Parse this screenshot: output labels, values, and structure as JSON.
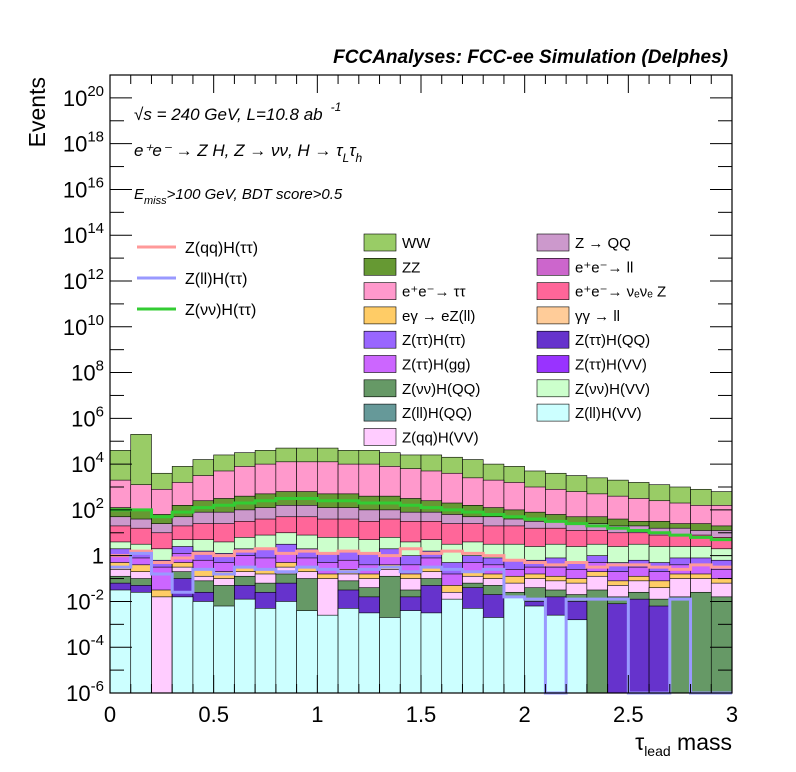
{
  "chart_data": {
    "type": "bar",
    "header": "FCCAnalyses: FCC-ee Simulation (Delphes)",
    "ylabel": "Events",
    "xlabel": "τ",
    "xlabel_sub": "lead",
    "xlabel_suffix": " mass",
    "xlim": [
      0,
      3
    ],
    "ylim_log10": [
      -6,
      21
    ],
    "y_scale": "log",
    "x_ticks": [
      "0",
      "0.5",
      "1",
      "1.5",
      "2",
      "2.5",
      "3"
    ],
    "y_tick_exponents": [
      -6,
      -4,
      -2,
      0,
      2,
      4,
      6,
      8,
      10,
      12,
      14,
      16,
      18,
      20
    ],
    "annotations": {
      "energy_pre": "√",
      "energy_s": "s",
      "energy_text": " = 240 GeV, L=10.8 ab",
      "energy_sup": "-1",
      "process": "e⁺e⁻ → Z H, Z → νν, H → τ",
      "process_sub1": "L",
      "process_tau": "τ",
      "process_sub2": "h",
      "cut_e": "E",
      "cut_sub": "miss",
      "cut_text": ">100 GeV, BDT score>0.5"
    },
    "line_legend": [
      {
        "label": "Z(qq)H(ττ)",
        "color": "#ff9999"
      },
      {
        "label": "Z(ll)H(ττ)",
        "color": "#9999ff"
      },
      {
        "label": "Z(νν)H(ττ)",
        "color": "#33cc33"
      }
    ],
    "fill_legend": [
      {
        "label": "WW",
        "color": "#99cc66"
      },
      {
        "label": "Z → QQ",
        "color": "#cc99cc"
      },
      {
        "label": "ZZ",
        "color": "#669933"
      },
      {
        "label": "e⁺e⁻→ ll",
        "color": "#cc66cc"
      },
      {
        "label": "e⁺e⁻→ ττ",
        "color": "#ff99cc"
      },
      {
        "label": "e⁺e⁻→ νₑνₑ Z",
        "color": "#ff6699"
      },
      {
        "label": "eγ → eZ(ll)",
        "color": "#ffcc66"
      },
      {
        "label": "γγ → ll",
        "color": "#ffcc99"
      },
      {
        "label": "Z(ττ)H(ττ)",
        "color": "#9966ff"
      },
      {
        "label": "Z(ττ)H(QQ)",
        "color": "#6633cc"
      },
      {
        "label": "Z(ττ)H(gg)",
        "color": "#cc66ff"
      },
      {
        "label": "Z(ττ)H(VV)",
        "color": "#9933ff"
      },
      {
        "label": "Z(νν)H(QQ)",
        "color": "#669966"
      },
      {
        "label": "Z(νν)H(VV)",
        "color": "#ccffcc"
      },
      {
        "label": "Z(ll)H(QQ)",
        "color": "#669999"
      },
      {
        "label": "Z(ll)H(VV)",
        "color": "#ccffff"
      },
      {
        "label": "Z(qq)H(VV)",
        "color": "#ffccff"
      }
    ],
    "bin_width": 0.1,
    "x_bin_edges_start": 0,
    "stack_layers_log10": [
      {
        "name": "Z(ll)H(VV)",
        "color": "#ccffff",
        "tops": [
          -1.5,
          -1.6,
          -6,
          -1.8,
          -2.0,
          -2.2,
          -1.9,
          -2.3,
          -2.0,
          -2.4,
          -2.6,
          -2.3,
          -2.5,
          -2.7,
          -2.4,
          -2.5,
          -1.9,
          -2.3,
          -2.7,
          -1.8,
          -2.2,
          -2.6,
          -2.8,
          -6,
          -6,
          -6,
          -6,
          -6,
          -6,
          -6
        ]
      },
      {
        "name": "Z(ττ)H(QQ)",
        "color": "#6633cc",
        "tops": [
          -1.2,
          -1.3,
          -6,
          -1.0,
          -1.6,
          -6,
          -1.3,
          -1.6,
          -1.2,
          -6,
          -6,
          -1.5,
          -1.8,
          -6,
          -1.8,
          -1.3,
          -6,
          -1.4,
          -1.7,
          -2.0,
          -2.0,
          -1.8,
          -2.0,
          -6,
          -2.1,
          -1.9,
          -2.2,
          -6,
          -6,
          -6
        ]
      },
      {
        "name": "Z(νν)H(QQ)",
        "color": "#669966",
        "tops": [
          -0.9,
          -1.0,
          -6,
          -0.7,
          -1.1,
          -1.3,
          -0.9,
          -1.2,
          -0.8,
          -1.0,
          -3.9,
          -1.1,
          -1.4,
          -0.9,
          -1.5,
          -1.0,
          -4.0,
          -1.2,
          -1.3,
          -1.6,
          -1.4,
          -1.5,
          -1.7,
          -1.5,
          -1.8,
          -1.6,
          -1.9,
          -1.8,
          -1.6,
          -1.8
        ]
      },
      {
        "name": "Z(qq)H(VV)",
        "color": "#ffccff",
        "tops": [
          -0.6,
          -0.7,
          -1.8,
          -0.5,
          -0.9,
          -1.0,
          -0.7,
          -0.8,
          -0.5,
          -0.7,
          -1.0,
          -0.8,
          -1.0,
          -0.6,
          -1.0,
          -0.7,
          -1.6,
          -0.9,
          -1.0,
          -1.2,
          -1.0,
          -1.1,
          -1.2,
          -0.9,
          -1.3,
          -1.1,
          -1.4,
          -1.0,
          -1.0,
          -1.2
        ]
      },
      {
        "name": "eγ → eZ(ll)",
        "color": "#ffcc66",
        "tops": [
          -0.3,
          -0.4,
          -1.5,
          -0.3,
          -0.6,
          -0.7,
          -0.5,
          -0.6,
          -0.3,
          -0.5,
          -0.8,
          -0.6,
          -0.8,
          -0.4,
          -0.8,
          -0.5,
          -1.3,
          -0.7,
          -0.8,
          -0.9,
          -0.8,
          -0.9,
          -1.0,
          -0.7,
          -1.1,
          -0.9,
          -1.1,
          -0.8,
          -0.8,
          -1.0
        ]
      },
      {
        "name": "Z(ττ)H(gg)",
        "color": "#cc66ff",
        "tops": [
          0.0,
          -0.1,
          -0.5,
          0.1,
          -0.2,
          -0.3,
          0.0,
          -0.1,
          0.1,
          -0.1,
          -0.3,
          -0.2,
          -0.4,
          0.0,
          -0.4,
          -0.1,
          -0.8,
          -0.3,
          -0.4,
          -0.6,
          -0.5,
          -0.5,
          -0.6,
          -0.3,
          -0.7,
          -0.5,
          -0.7,
          -0.4,
          -0.4,
          -0.6
        ]
      },
      {
        "name": "Z(ττ)H(ττ)",
        "color": "#9966ff",
        "tops": [
          0.3,
          0.2,
          -0.2,
          0.4,
          0.2,
          0.1,
          0.3,
          0.3,
          0.5,
          0.3,
          0.1,
          0.2,
          0.1,
          0.3,
          0.0,
          0.2,
          -0.3,
          0.0,
          -0.1,
          -0.2,
          -0.2,
          -0.1,
          -0.3,
          0.0,
          -0.3,
          -0.2,
          -0.3,
          -0.1,
          -0.1,
          -0.2
        ]
      },
      {
        "name": "Z(νν)H(VV)",
        "color": "#ccffcc",
        "tops": [
          0.6,
          0.5,
          0.3,
          0.7,
          0.7,
          0.6,
          0.8,
          0.9,
          1.0,
          0.9,
          0.8,
          0.8,
          0.7,
          0.8,
          0.6,
          0.7,
          0.5,
          0.6,
          0.5,
          0.5,
          0.4,
          0.5,
          0.4,
          0.5,
          0.4,
          0.5,
          0.4,
          0.4,
          0.4,
          0.3
        ]
      },
      {
        "name": "e⁺e⁻→ νₑνₑ Z",
        "color": "#ff6699",
        "tops": [
          1.3,
          1.2,
          1.0,
          1.3,
          1.4,
          1.4,
          1.5,
          1.6,
          1.7,
          1.7,
          1.6,
          1.6,
          1.5,
          1.6,
          1.5,
          1.5,
          1.4,
          1.4,
          1.3,
          1.3,
          1.2,
          1.2,
          1.1,
          1.1,
          1.0,
          1.0,
          0.9,
          0.9,
          0.9,
          0.8
        ]
      },
      {
        "name": "Z → QQ",
        "color": "#cc99cc",
        "tops": [
          1.7,
          1.6,
          1.4,
          1.7,
          1.9,
          1.9,
          2.0,
          2.1,
          2.2,
          2.2,
          2.1,
          2.1,
          2.0,
          2.0,
          1.9,
          1.9,
          1.8,
          1.7,
          1.7,
          1.6,
          1.5,
          1.5,
          1.4,
          1.4,
          1.3,
          1.3,
          1.2,
          1.2,
          1.1,
          1.1
        ]
      },
      {
        "name": "ZZ",
        "color": "#669933",
        "tops": [
          2.1,
          2.0,
          1.8,
          2.2,
          2.4,
          2.5,
          2.6,
          2.7,
          2.8,
          2.8,
          2.7,
          2.7,
          2.6,
          2.6,
          2.5,
          2.4,
          2.3,
          2.2,
          2.1,
          2.0,
          1.9,
          1.8,
          1.7,
          1.7,
          1.6,
          1.5,
          1.5,
          1.4,
          1.4,
          1.3
        ]
      },
      {
        "name": "e⁺e⁻→ ττ",
        "color": "#ff99cc",
        "tops": [
          3.3,
          3.1,
          2.9,
          3.2,
          3.5,
          3.7,
          3.9,
          4.0,
          4.1,
          4.1,
          4.1,
          4.0,
          4.0,
          3.9,
          3.8,
          3.7,
          3.6,
          3.4,
          3.3,
          3.2,
          3.0,
          2.9,
          2.8,
          2.7,
          2.6,
          2.5,
          2.4,
          2.3,
          2.2,
          2.2
        ]
      },
      {
        "name": "WW",
        "color": "#99cc66",
        "tops": [
          4.6,
          5.3,
          3.6,
          3.9,
          4.2,
          4.4,
          4.5,
          4.6,
          4.7,
          4.7,
          4.7,
          4.6,
          4.6,
          4.5,
          4.4,
          4.4,
          4.3,
          4.2,
          4.0,
          3.9,
          3.7,
          3.6,
          3.5,
          3.4,
          3.3,
          3.2,
          3.1,
          3.0,
          2.9,
          2.8
        ]
      }
    ],
    "signal_lines_log10": [
      {
        "name": "Z(νν)H(ττ)",
        "color": "#33cc33",
        "values": [
          2.0,
          2.0,
          1.7,
          1.9,
          2.1,
          2.2,
          2.3,
          2.4,
          2.5,
          2.5,
          2.4,
          2.4,
          2.3,
          2.3,
          2.2,
          2.1,
          2.0,
          1.9,
          1.8,
          1.7,
          1.6,
          1.5,
          1.4,
          1.3,
          1.2,
          1.1,
          1.0,
          0.9,
          0.8,
          0.7
        ]
      },
      {
        "name": "Z(qq)H(ττ)",
        "color": "#ff9999",
        "values": [
          0.0,
          0.2,
          -0.3,
          -0.1,
          0.1,
          0.0,
          0.2,
          0.3,
          0.1,
          0.2,
          0.1,
          0.2,
          0.1,
          0.0,
          0.3,
          0.1,
          0.2,
          0.1,
          0.0,
          -0.2,
          -0.3,
          -0.4,
          -0.3,
          -0.5,
          -0.4,
          -0.4,
          -0.5,
          -0.6,
          -0.4,
          -0.5
        ]
      },
      {
        "name": "Z(ll)H(ττ)",
        "color": "#9999ff",
        "values": [
          -0.5,
          0.1,
          -0.8,
          -1.6,
          -0.6,
          -0.8,
          -0.5,
          -0.6,
          -0.7,
          -0.5,
          -0.6,
          -0.7,
          -0.6,
          -0.5,
          -0.7,
          -0.5,
          -0.6,
          -0.7,
          -0.6,
          -1.8,
          -1.9,
          -6,
          -1.9,
          -1.9,
          -1.9,
          -6,
          -6,
          -1.9,
          -6,
          -6
        ]
      }
    ]
  }
}
